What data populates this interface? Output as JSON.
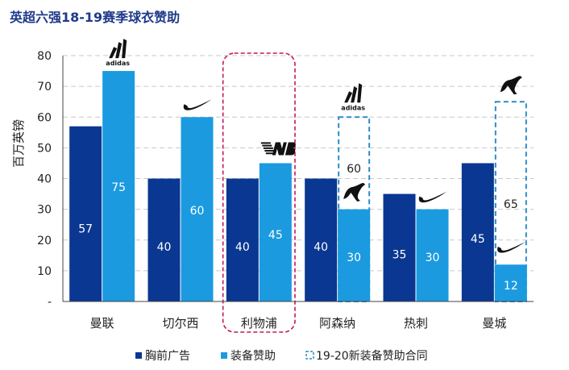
{
  "title": "英超六强18-19赛季球衣赞助",
  "colors": {
    "title": "#1f3a8a",
    "chest": "#0a3791",
    "kit": "#1b9ae0",
    "dashed": "#2f8bc4",
    "highlight": "#c2185b",
    "grid": "#c9c9c9"
  },
  "chart_data": {
    "type": "bar",
    "ylabel": "百万英镑",
    "ylim": [
      0,
      80
    ],
    "yticks": [
      "-",
      "10",
      "20",
      "30",
      "40",
      "50",
      "60",
      "70",
      "80"
    ],
    "categories": [
      "曼联",
      "切尔西",
      "利物浦",
      "阿森纳",
      "热刺",
      "曼城"
    ],
    "series": [
      {
        "name": "胸前广告",
        "values": [
          57,
          40,
          40,
          40,
          35,
          45
        ],
        "labels": [
          "57",
          "40",
          "40",
          "40",
          "35",
          "45"
        ]
      },
      {
        "name": "装备赞助",
        "values": [
          75,
          60,
          45,
          30,
          30,
          12
        ],
        "labels": [
          "75",
          "60",
          "45",
          "30",
          "30",
          "12"
        ]
      },
      {
        "name": "19-20新装备赞助合同",
        "values": [
          null,
          null,
          null,
          60,
          null,
          65
        ],
        "labels": [
          "",
          "",
          "",
          "60",
          "",
          "65"
        ]
      }
    ],
    "brands": [
      {
        "category": "曼联",
        "logo": "adidas-logo",
        "text": "adidas",
        "position": "above-kit"
      },
      {
        "category": "切尔西",
        "logo": "nike-swoosh-logo",
        "position": "above-kit"
      },
      {
        "category": "利物浦",
        "logo": "new-balance-logo",
        "position": "above-kit"
      },
      {
        "category": "阿森纳",
        "logo": "adidas-logo",
        "text": "adidas",
        "position": "above-new"
      },
      {
        "category": "阿森纳",
        "logo": "puma-logo",
        "position": "above-kit"
      },
      {
        "category": "热刺",
        "logo": "nike-swoosh-logo",
        "position": "above-kit"
      },
      {
        "category": "曼城",
        "logo": "puma-logo",
        "position": "above-new"
      },
      {
        "category": "曼城",
        "logo": "nike-swoosh-logo",
        "position": "above-kit"
      }
    ],
    "highlight_category": "利物浦",
    "grid": true,
    "legend_position": "bottom"
  }
}
